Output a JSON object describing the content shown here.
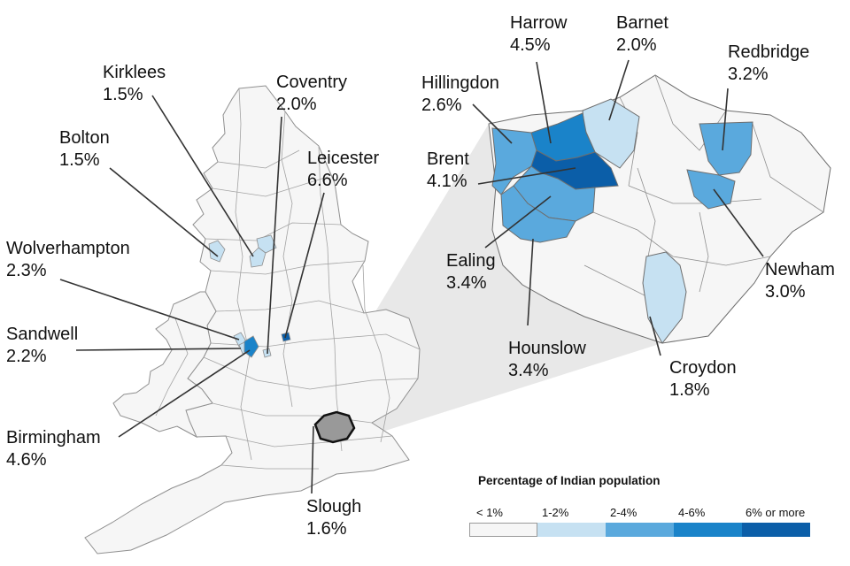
{
  "colors": {
    "under1": "#f6f6f6",
    "1to2": "#c6e1f2",
    "2to4": "#5aa9dd",
    "4to6": "#1a83c9",
    "over6": "#0b5ea8",
    "slough_highlight": "#999999",
    "border": "#8f8f8f",
    "callout_wedge": "#e8e8e8",
    "line": "#333333"
  },
  "legend": {
    "title": "Percentage of Indian population",
    "categories": [
      {
        "label": "< 1%",
        "color_key": "under1"
      },
      {
        "label": "1-2%",
        "color_key": "1to2"
      },
      {
        "label": "2-4%",
        "color_key": "2to4"
      },
      {
        "label": "4-6%",
        "color_key": "4to6"
      },
      {
        "label": "6% or more",
        "color_key": "over6"
      }
    ]
  },
  "areas": {
    "kirklees": {
      "name": "Kirklees",
      "value": "1.5%"
    },
    "coventry": {
      "name": "Coventry",
      "value": "2.0%"
    },
    "bolton": {
      "name": "Bolton",
      "value": "1.5%"
    },
    "leicester": {
      "name": "Leicester",
      "value": "6.6%"
    },
    "wolverhampton": {
      "name": "Wolverhampton",
      "value": "2.3%"
    },
    "sandwell": {
      "name": "Sandwell",
      "value": "2.2%"
    },
    "birmingham": {
      "name": "Birmingham",
      "value": "4.6%"
    },
    "slough": {
      "name": "Slough",
      "value": "1.6%"
    },
    "harrow": {
      "name": "Harrow",
      "value": "4.5%"
    },
    "barnet": {
      "name": "Barnet",
      "value": "2.0%"
    },
    "redbridge": {
      "name": "Redbridge",
      "value": "3.2%"
    },
    "hillingdon": {
      "name": "Hillingdon",
      "value": "2.6%"
    },
    "brent": {
      "name": "Brent",
      "value": "4.1%"
    },
    "ealing": {
      "name": "Ealing",
      "value": "3.4%"
    },
    "newham": {
      "name": "Newham",
      "value": "3.0%"
    },
    "hounslow": {
      "name": "Hounslow",
      "value": "3.4%"
    },
    "croydon": {
      "name": "Croydon",
      "value": "1.8%"
    }
  }
}
